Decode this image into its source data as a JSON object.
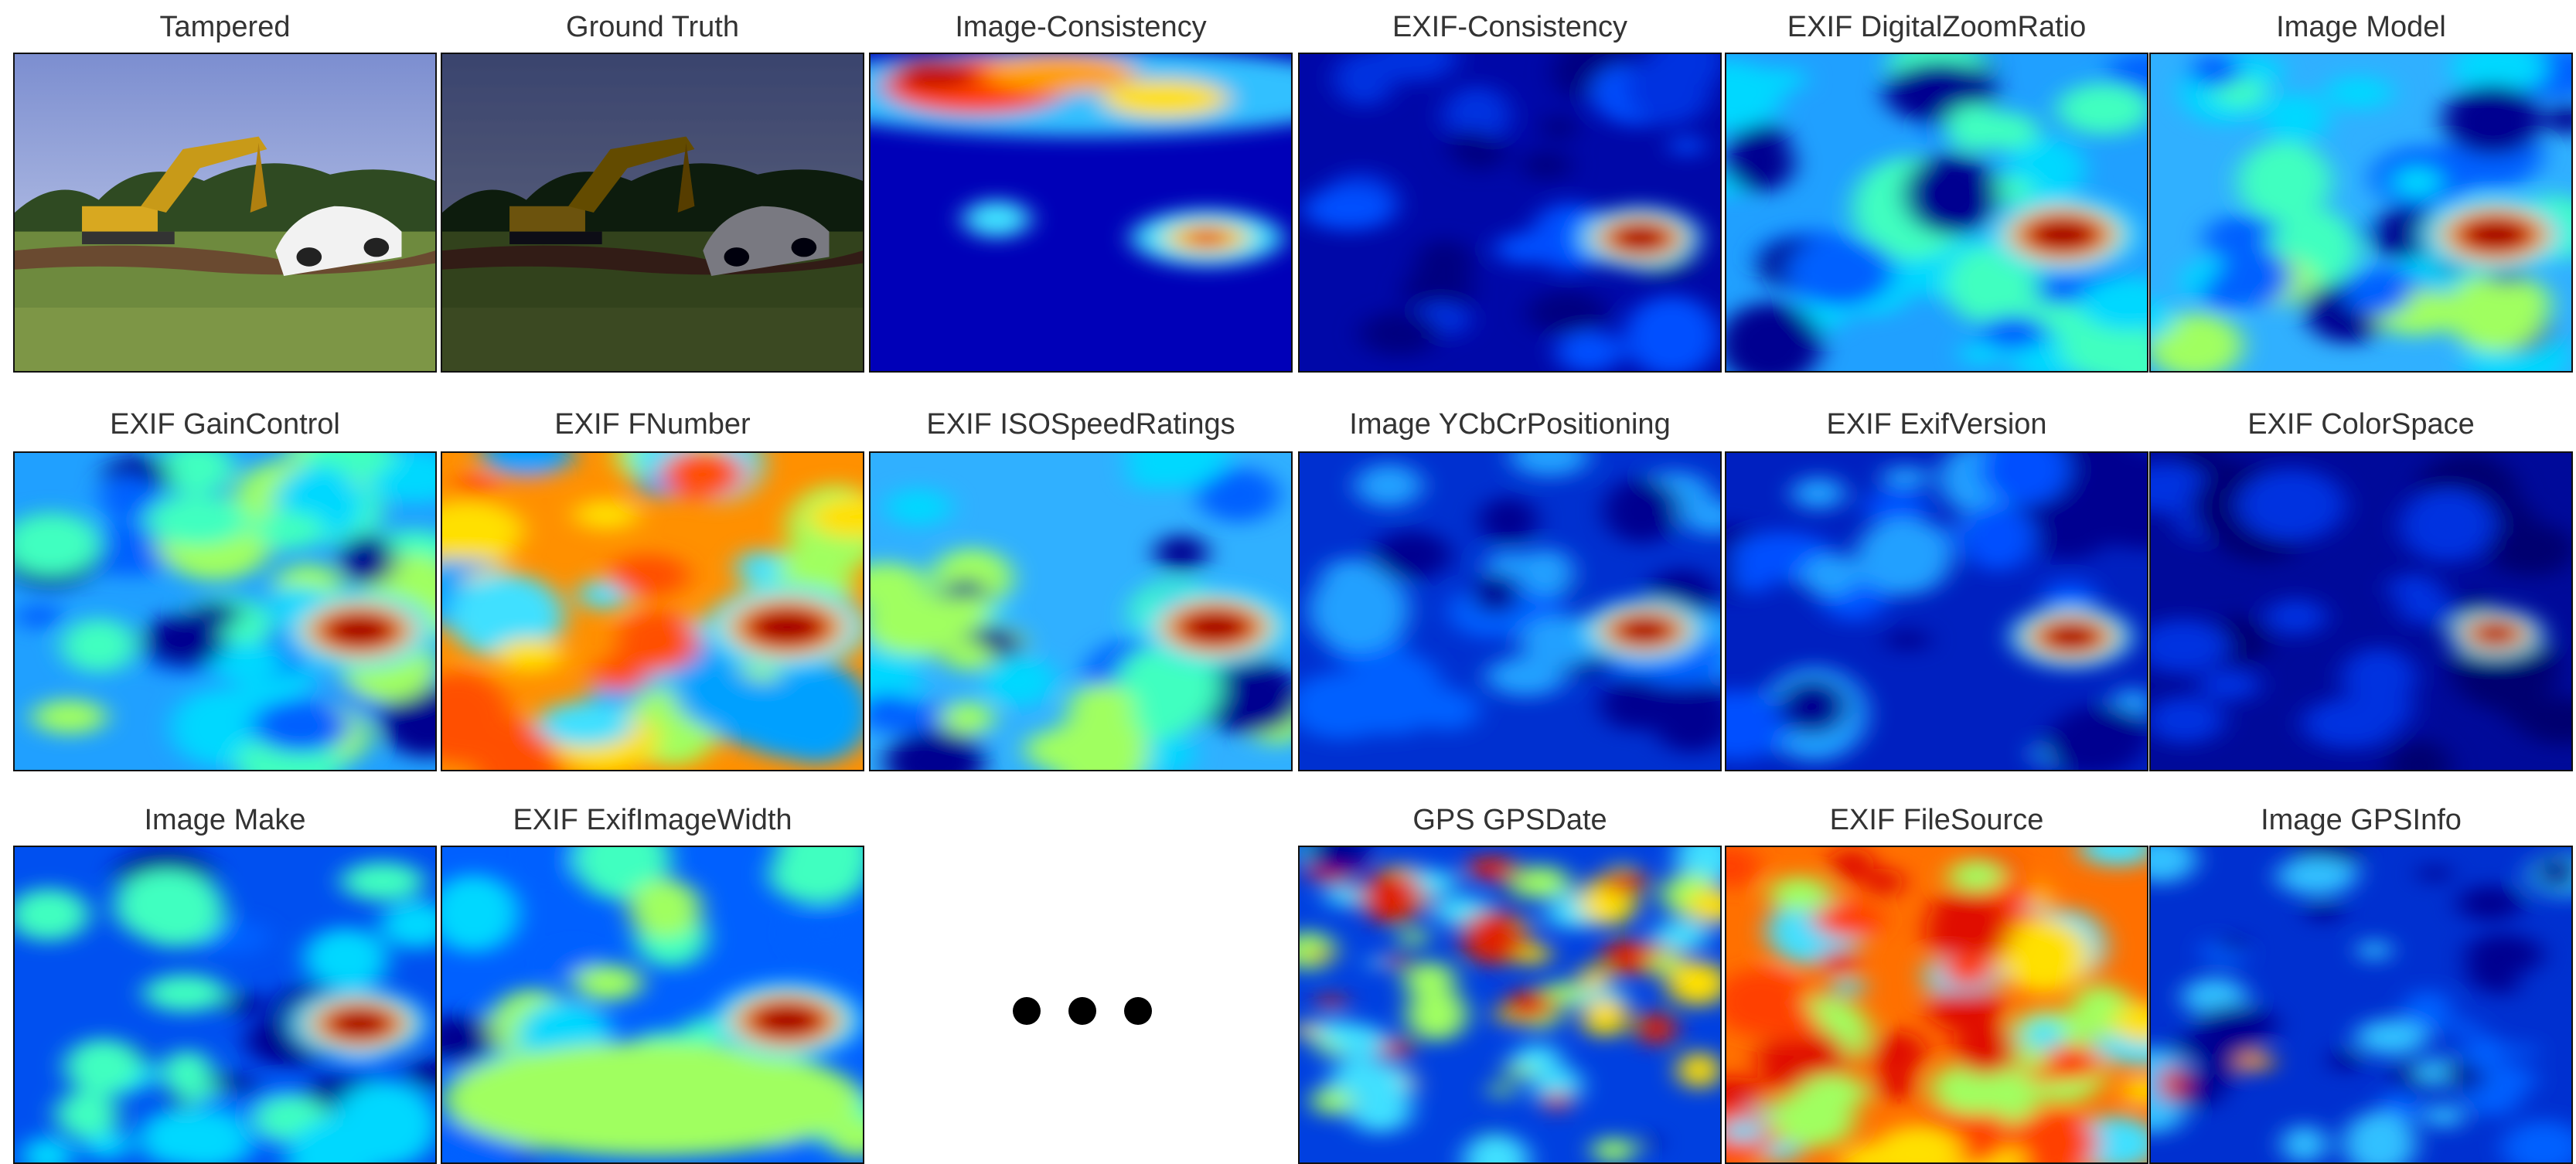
{
  "panels": [
    {
      "label": "Tampered"
    },
    {
      "label": "Ground Truth"
    },
    {
      "label": "Image-Consistency"
    },
    {
      "label": "EXIF-Consistency"
    },
    {
      "label": "EXIF DigitalZoomRatio"
    },
    {
      "label": "Image Model"
    },
    {
      "label": "EXIF GainControl"
    },
    {
      "label": "EXIF FNumber"
    },
    {
      "label": "EXIF ISOSpeedRatings"
    },
    {
      "label": "Image YCbCrPositioning"
    },
    {
      "label": "EXIF ExifVersion"
    },
    {
      "label": "EXIF ColorSpace"
    },
    {
      "label": "Image Make"
    },
    {
      "label": "EXIF ExifImageWidth"
    },
    {
      "label": "GPS GPSDate"
    },
    {
      "label": "EXIF FileSource"
    },
    {
      "label": "Image GPSInfo"
    }
  ]
}
